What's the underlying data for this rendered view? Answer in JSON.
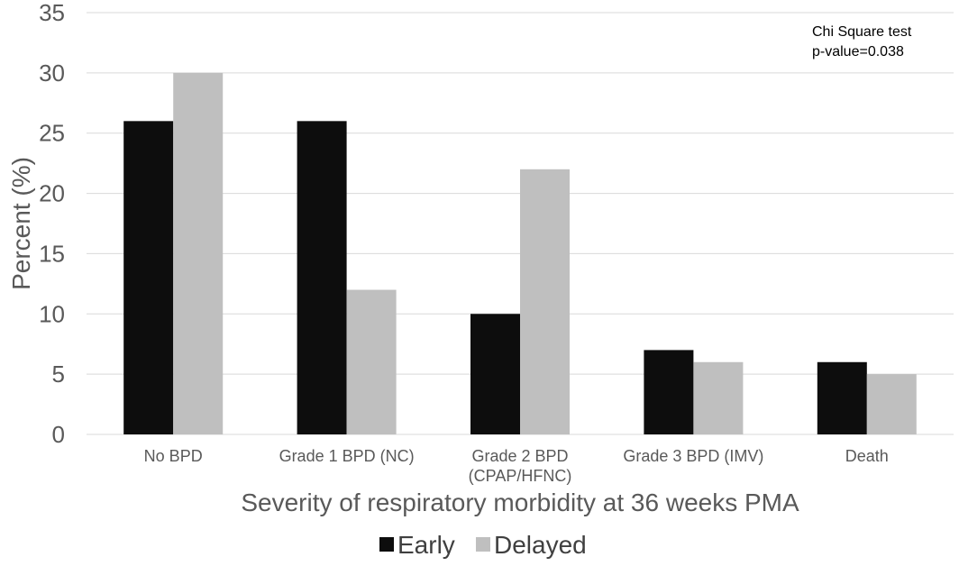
{
  "chart_data": {
    "type": "bar",
    "categories": [
      [
        "No BPD"
      ],
      [
        "Grade 1 BPD (NC)"
      ],
      [
        "Grade 2 BPD",
        "(CPAP/HFNC)"
      ],
      [
        "Grade 3 BPD (IMV)"
      ],
      [
        "Death"
      ]
    ],
    "series": [
      {
        "name": "Early",
        "color": "#0d0d0d",
        "values": [
          26,
          26,
          10,
          7,
          6
        ]
      },
      {
        "name": "Delayed",
        "color": "#bfbfbf",
        "values": [
          30,
          12,
          22,
          6,
          5
        ]
      }
    ],
    "ylim": [
      0,
      35
    ],
    "yticks": [
      0,
      5,
      10,
      15,
      20,
      25,
      30,
      35
    ],
    "ylabel": "Percent (%)",
    "xlabel": "Severity of respiratory morbidity at 36 weeks PMA",
    "grid": true,
    "legend_position": "bottom",
    "annotation": [
      "Chi Square test",
      "p-value=0.038"
    ]
  }
}
